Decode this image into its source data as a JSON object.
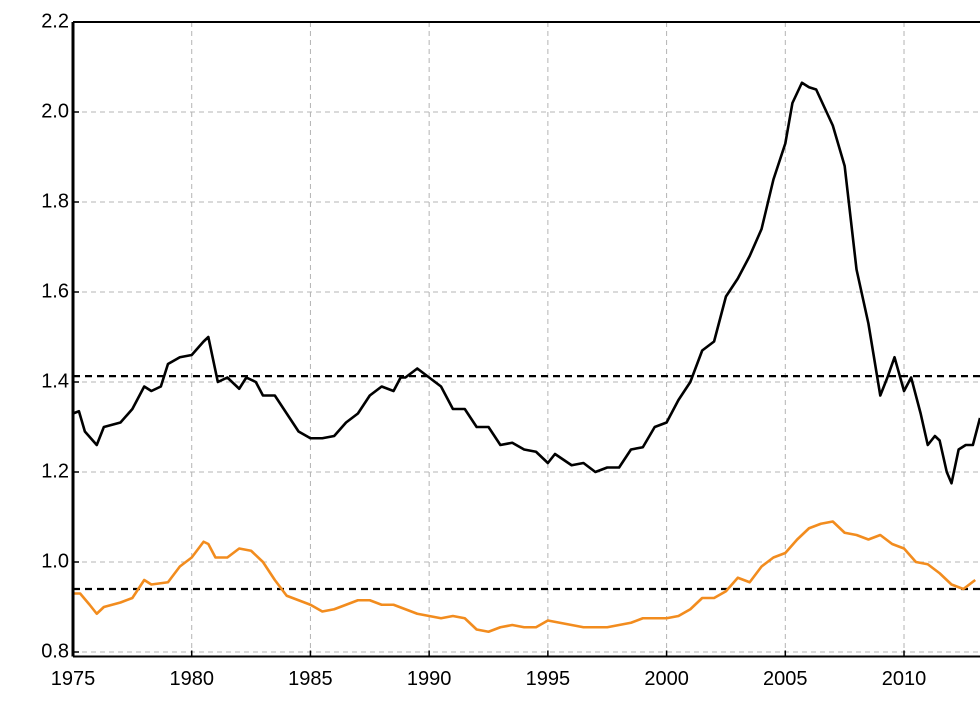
{
  "chart_data": {
    "type": "line",
    "xlim": [
      1975,
      2013.2
    ],
    "xticks": [
      1975,
      1980,
      1985,
      1990,
      1995,
      2000,
      2005,
      2010
    ],
    "ylim": [
      0.79,
      2.2
    ],
    "yticks": [
      {
        "value": 0.8,
        "label": "0.8"
      },
      {
        "value": 1,
        "label": "1.0"
      },
      {
        "value": 1.2,
        "label": "1.2"
      },
      {
        "value": 1.4,
        "label": "1.4"
      },
      {
        "value": 1.6,
        "label": "1.6"
      },
      {
        "value": 1.8,
        "label": "1.8"
      },
      {
        "value": 2,
        "label": "2.0"
      },
      {
        "value": 2.2,
        "label": "2.2"
      }
    ],
    "grid": true,
    "hlines": [
      1.413,
      0.94
    ],
    "series": [
      {
        "color": "#000000",
        "x": [
          1975,
          1975.25,
          1975.5,
          1976,
          1976.3,
          1977,
          1977.5,
          1978,
          1978.3,
          1978.7,
          1979,
          1979.5,
          1980,
          1980.5,
          1980.7,
          1981.1,
          1981.5,
          1982,
          1982.3,
          1982.7,
          1983,
          1983.5,
          1984,
          1984.5,
          1985,
          1985.5,
          1986,
          1986.5,
          1987,
          1987.5,
          1988,
          1988.5,
          1988.8,
          1989,
          1989.5,
          1990,
          1990.5,
          1991,
          1991.5,
          1992,
          1992.5,
          1993,
          1993.5,
          1994,
          1994.5,
          1995,
          1995.3,
          1996,
          1996.5,
          1997,
          1997.5,
          1998,
          1998.5,
          1999,
          1999.5,
          2000,
          2000.5,
          2001,
          2001.5,
          2002,
          2002.5,
          2003,
          2003.5,
          2004,
          2004.5,
          2005,
          2005.3,
          2005.7,
          2006,
          2006.3,
          2007,
          2007.5,
          2008,
          2008.5,
          2009,
          2009.3,
          2009.6,
          2010,
          2010.3,
          2010.7,
          2011,
          2011.3,
          2011.5,
          2011.8,
          2012,
          2012.3,
          2012.6,
          2012.9,
          2013.2
        ],
        "values": [
          1.33,
          1.335,
          1.29,
          1.26,
          1.3,
          1.31,
          1.34,
          1.39,
          1.38,
          1.39,
          1.44,
          1.455,
          1.46,
          1.49,
          1.5,
          1.4,
          1.41,
          1.385,
          1.41,
          1.4,
          1.37,
          1.37,
          1.33,
          1.29,
          1.275,
          1.275,
          1.28,
          1.31,
          1.33,
          1.37,
          1.39,
          1.38,
          1.41,
          1.41,
          1.43,
          1.41,
          1.39,
          1.34,
          1.34,
          1.3,
          1.3,
          1.26,
          1.265,
          1.25,
          1.245,
          1.22,
          1.24,
          1.215,
          1.22,
          1.2,
          1.21,
          1.21,
          1.25,
          1.255,
          1.3,
          1.31,
          1.36,
          1.4,
          1.47,
          1.49,
          1.59,
          1.63,
          1.68,
          1.74,
          1.85,
          1.93,
          2.02,
          2.065,
          2.055,
          2.05,
          1.97,
          1.88,
          1.65,
          1.53,
          1.37,
          1.41,
          1.455,
          1.38,
          1.41,
          1.33,
          1.26,
          1.28,
          1.27,
          1.2,
          1.175,
          1.25,
          1.26,
          1.26,
          1.32
        ]
      },
      {
        "color": "#f28c1e",
        "x": [
          1975,
          1975.3,
          1975.7,
          1976,
          1976.3,
          1977,
          1977.5,
          1978,
          1978.3,
          1979,
          1979.5,
          1980,
          1980.5,
          1980.7,
          1981,
          1981.5,
          1982,
          1982.5,
          1983,
          1983.5,
          1984,
          1984.5,
          1985,
          1985.5,
          1986,
          1986.5,
          1987,
          1987.5,
          1988,
          1988.5,
          1989,
          1989.5,
          1990,
          1990.5,
          1991,
          1991.5,
          1992,
          1992.5,
          1993,
          1993.5,
          1994,
          1994.5,
          1995,
          1995.5,
          1996,
          1996.5,
          1997,
          1997.5,
          1998,
          1998.5,
          1999,
          1999.5,
          2000,
          2000.5,
          2001,
          2001.5,
          2002,
          2002.5,
          2003,
          2003.5,
          2004,
          2004.5,
          2005,
          2005.5,
          2006,
          2006.5,
          2007,
          2007.5,
          2008,
          2008.5,
          2009,
          2009.5,
          2010,
          2010.5,
          2011,
          2011.5,
          2012,
          2012.5,
          2013
        ],
        "values": [
          0.93,
          0.93,
          0.905,
          0.885,
          0.9,
          0.91,
          0.92,
          0.96,
          0.95,
          0.955,
          0.99,
          1.01,
          1.045,
          1.04,
          1.01,
          1.01,
          1.03,
          1.025,
          1.0,
          0.96,
          0.925,
          0.915,
          0.905,
          0.89,
          0.895,
          0.905,
          0.915,
          0.915,
          0.905,
          0.905,
          0.895,
          0.885,
          0.88,
          0.875,
          0.88,
          0.875,
          0.85,
          0.845,
          0.855,
          0.86,
          0.855,
          0.855,
          0.87,
          0.865,
          0.86,
          0.855,
          0.855,
          0.855,
          0.86,
          0.865,
          0.875,
          0.875,
          0.875,
          0.88,
          0.895,
          0.92,
          0.92,
          0.935,
          0.965,
          0.955,
          0.99,
          1.01,
          1.02,
          1.05,
          1.075,
          1.085,
          1.09,
          1.065,
          1.06,
          1.05,
          1.06,
          1.04,
          1.03,
          1.0,
          0.995,
          0.975,
          0.95,
          0.94,
          0.96
        ]
      }
    ]
  }
}
